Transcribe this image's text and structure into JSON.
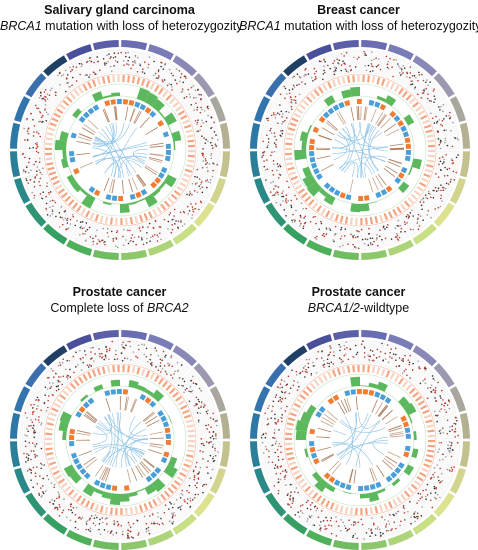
{
  "panels": [
    {
      "title": "Salivary gland carcinoma",
      "subtitle": [
        {
          "text": "BRCA1",
          "italic": true
        },
        {
          "text": " mutation with loss of heterozygozity",
          "italic": false
        }
      ]
    },
    {
      "title": "Breast cancer",
      "subtitle": [
        {
          "text": "BRCA1",
          "italic": true
        },
        {
          "text": " mutation with loss of heterozygozity",
          "italic": false
        }
      ]
    },
    {
      "title": "Prostate cancer",
      "subtitle": [
        {
          "text": "Complete loss of ",
          "italic": false
        },
        {
          "text": "BRCA2",
          "italic": true
        }
      ]
    },
    {
      "title": "Prostate cancer",
      "subtitle": [
        {
          "text": "BRCA1/2",
          "italic": true
        },
        {
          "text": "-wildtype",
          "italic": false
        }
      ]
    }
  ]
}
